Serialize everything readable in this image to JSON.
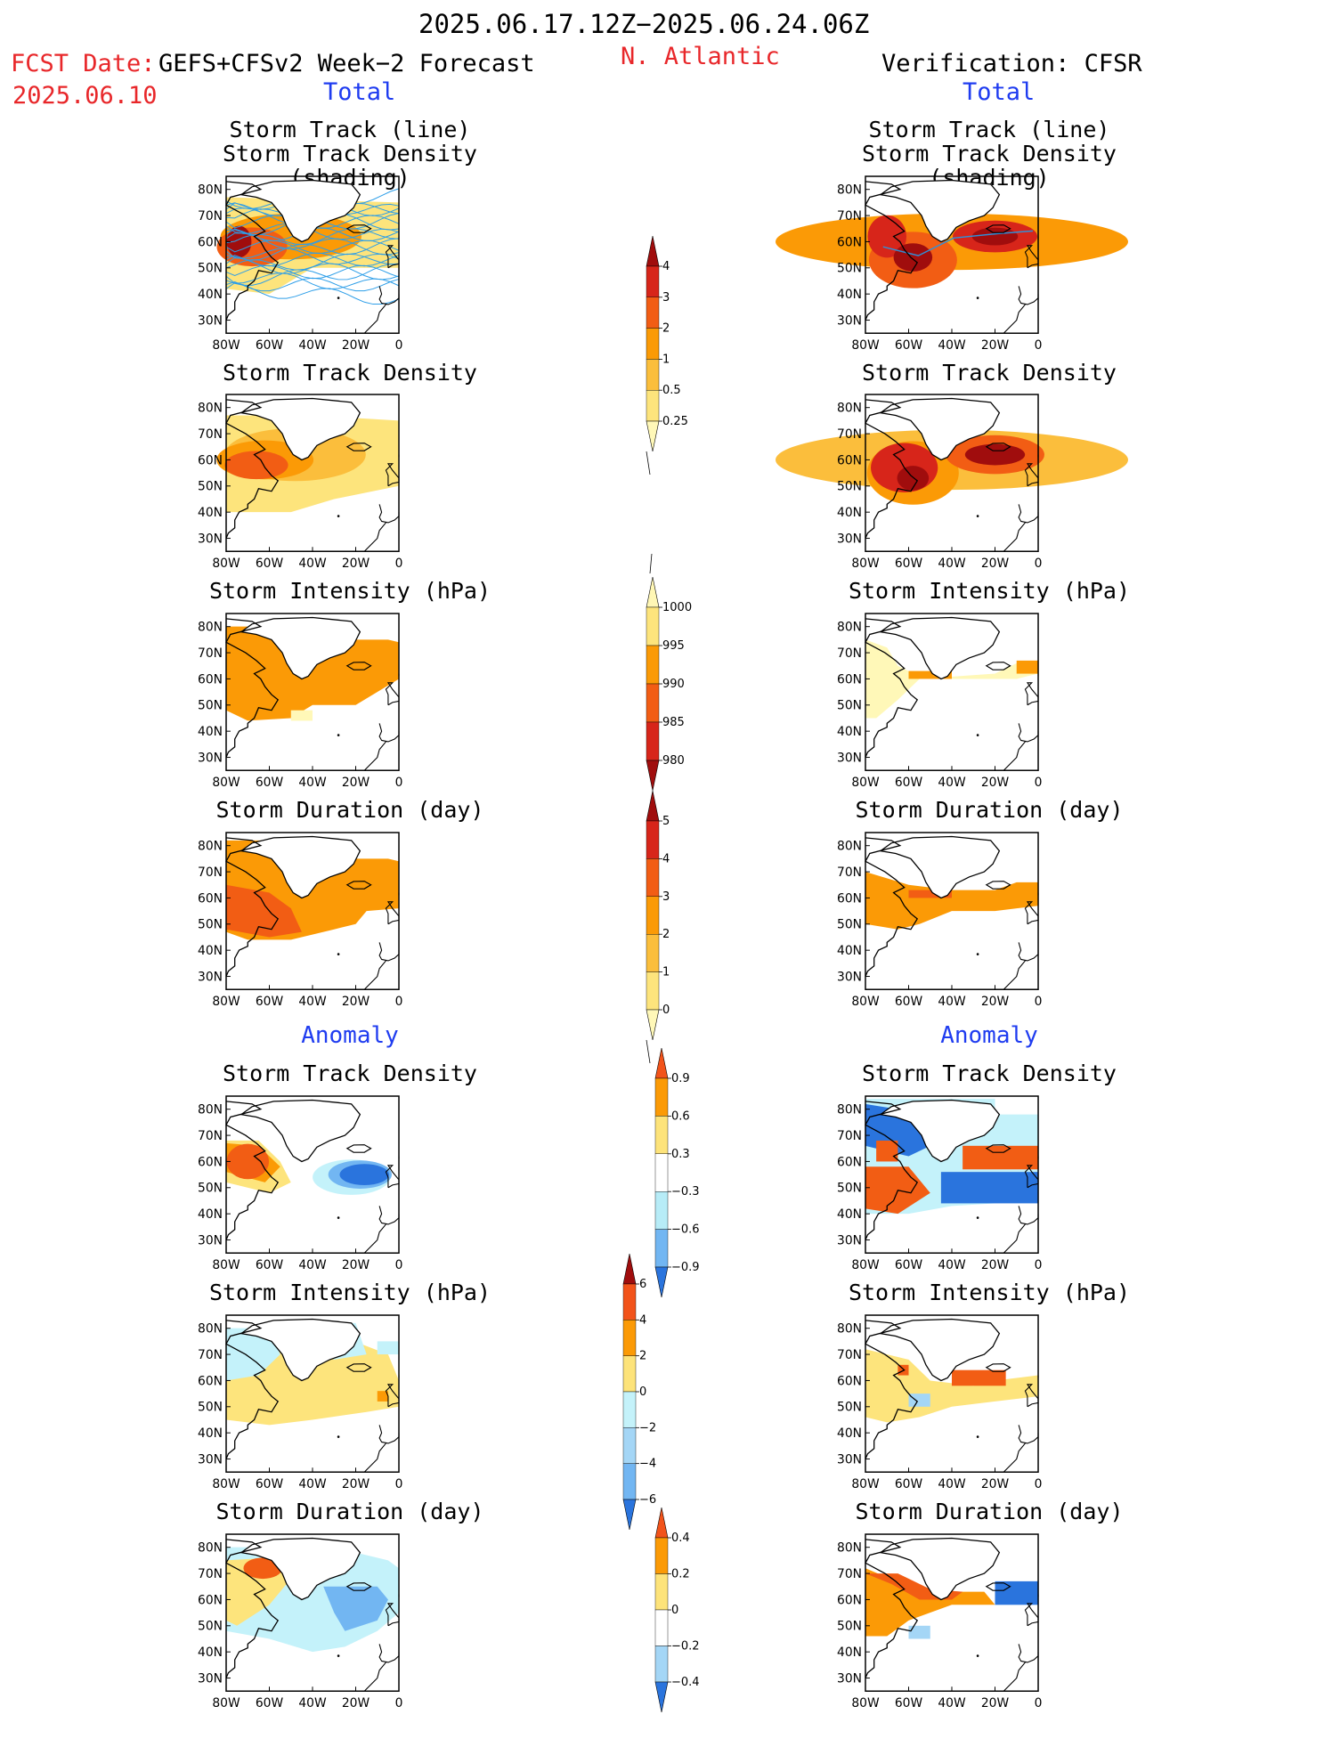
{
  "header": {
    "period": "2025.06.17.12Z−2025.06.24.06Z",
    "fcst_label": "FCST Date:",
    "fcst_model": "GEFS+CFSv2 Week−2 Forecast",
    "fcst_date": "2025.06.10",
    "region": "N. Atlantic",
    "verification": "Verification: CFSR",
    "left_total": "Total",
    "right_total": "Total",
    "left_anomaly": "Anomaly",
    "right_anomaly": "Anomaly"
  },
  "axes": {
    "lat_ticks": [
      "80N",
      "70N",
      "60N",
      "50N",
      "40N",
      "30N"
    ],
    "lon_ticks": [
      "80W",
      "60W",
      "40W",
      "20W",
      "0"
    ]
  },
  "panels": {
    "left": [
      {
        "title1": "Storm Track (line)",
        "title2": "Storm Track Density (shading)"
      },
      {
        "title1": "Storm Track Density",
        "title2": ""
      },
      {
        "title1": "Storm Intensity (hPa)",
        "title2": ""
      },
      {
        "title1": "Storm Duration (day)",
        "title2": ""
      },
      {
        "title1": "Storm Track Density",
        "title2": ""
      },
      {
        "title1": "Storm Intensity (hPa)",
        "title2": ""
      },
      {
        "title1": "Storm Duration (day)",
        "title2": ""
      }
    ],
    "right": [
      {
        "title1": "Storm Track (line)",
        "title2": "Storm Track Density (shading)"
      },
      {
        "title1": "Storm Track Density",
        "title2": ""
      },
      {
        "title1": "Storm Intensity (hPa)",
        "title2": ""
      },
      {
        "title1": "Storm Duration (day)",
        "title2": ""
      },
      {
        "title1": "Storm Track Density",
        "title2": ""
      },
      {
        "title1": "Storm Intensity (hPa)",
        "title2": ""
      },
      {
        "title1": "Storm Duration (day)",
        "title2": ""
      }
    ]
  },
  "colorbars": [
    {
      "name": "track-density",
      "labels": [
        "4",
        "3",
        "2",
        "1",
        "0.5",
        "0.25"
      ],
      "colors": [
        "#a00d0d",
        "#d7251a",
        "#f25d14",
        "#fb9a06",
        "#fbbe3c",
        "#fde47c",
        "#fff8b8"
      ]
    },
    {
      "name": "intensity",
      "labels": [
        "1000",
        "995",
        "990",
        "985",
        "980"
      ],
      "colors": [
        "#fff7b5",
        "#fde47c",
        "#fb9a06",
        "#f25d14",
        "#d7251a",
        "#a00d0d"
      ]
    },
    {
      "name": "duration",
      "labels": [
        "5",
        "4",
        "3",
        "2",
        "1",
        "0"
      ],
      "colors": [
        "#a00d0d",
        "#d7251a",
        "#f25d14",
        "#fb9a06",
        "#fbbe3c",
        "#fde47c",
        "#fff8b8"
      ]
    },
    {
      "name": "density-anomaly",
      "labels": [
        "0.9",
        "0.6",
        "0.3",
        "−0.3",
        "−0.6",
        "−0.9"
      ],
      "colors": [
        "#f2531a",
        "#fb9a06",
        "#fde37a",
        "#ffffff",
        "#b7ecf7",
        "#72b6f2",
        "#2a74dd"
      ]
    },
    {
      "name": "intensity-anomaly",
      "labels": [
        "6",
        "4",
        "2",
        "0",
        "−2",
        "−4",
        "−6"
      ],
      "colors": [
        "#a00d0d",
        "#f2531a",
        "#fb9a06",
        "#fde37a",
        "#c4f2fa",
        "#a4d6f6",
        "#72b6f2",
        "#2a74dd"
      ]
    },
    {
      "name": "duration-anomaly",
      "labels": [
        "0.4",
        "0.2",
        "0",
        "−0.2",
        "−0.4"
      ],
      "colors": [
        "#f2531a",
        "#fb9a06",
        "#fde37a",
        "#ffffff",
        "#a4d6f6",
        "#2a74dd"
      ]
    }
  ],
  "chart_data": [
    {
      "type": "heatmap",
      "panel": "Forecast Total: Storm Track (line) / Storm Track Density (shading)",
      "x_range_lon": [
        -80,
        0
      ],
      "y_range_lat": [
        25,
        85
      ],
      "note_values": "density 0.25–4 with maximum near 60N 70W; track lines spread 40N–75N"
    },
    {
      "type": "heatmap",
      "panel": "Forecast Total: Storm Track Density",
      "levels": [
        0.25,
        0.5,
        1,
        2,
        3,
        4
      ],
      "max_region": "55–62N, 65–55W"
    },
    {
      "type": "heatmap",
      "panel": "Forecast Total: Storm Intensity (hPa)",
      "levels": [
        1000,
        995,
        990,
        985,
        980
      ],
      "dominant_value_hPa": 992
    },
    {
      "type": "heatmap",
      "panel": "Forecast Total: Storm Duration (day)",
      "levels": [
        0,
        1,
        2,
        3,
        4,
        5
      ],
      "dominant_value_day": 2.5
    },
    {
      "type": "heatmap",
      "panel": "Forecast Anomaly: Storm Track Density",
      "levels": [
        -0.9,
        -0.6,
        -0.3,
        0.3,
        0.6,
        0.9
      ],
      "positive_region": "55–65N, 80–60W",
      "negative_region": "50–60N, 35–5W"
    },
    {
      "type": "heatmap",
      "panel": "Forecast Anomaly: Storm Intensity (hPa)",
      "levels": [
        -6,
        -4,
        -2,
        0,
        2,
        4,
        6
      ],
      "dominant_value_hPa": 1
    },
    {
      "type": "heatmap",
      "panel": "Forecast Anomaly: Storm Duration (day)",
      "levels": [
        -0.4,
        -0.2,
        0,
        0.2,
        0.4
      ]
    },
    {
      "type": "heatmap",
      "panel": "Verification Total: Storm Track Density (shading)",
      "levels": [
        0.25,
        0.5,
        1,
        2,
        3,
        4
      ],
      "max_region": "60–65N, 30–10W"
    },
    {
      "type": "heatmap",
      "panel": "Verification Total: Storm Track Density",
      "levels": [
        0.25,
        0.5,
        1,
        2,
        3,
        4
      ]
    },
    {
      "type": "heatmap",
      "panel": "Verification Total: Storm Intensity (hPa)",
      "levels": [
        1000,
        995,
        990,
        985,
        980
      ]
    },
    {
      "type": "heatmap",
      "panel": "Verification Total: Storm Duration (day)",
      "levels": [
        0,
        1,
        2,
        3,
        4,
        5
      ]
    },
    {
      "type": "heatmap",
      "panel": "Verification Anomaly: Storm Track Density",
      "levels": [
        -0.9,
        -0.6,
        -0.3,
        0.3,
        0.6,
        0.9
      ]
    },
    {
      "type": "heatmap",
      "panel": "Verification Anomaly: Storm Intensity (hPa)",
      "levels": [
        -6,
        -4,
        -2,
        0,
        2,
        4,
        6
      ]
    },
    {
      "type": "heatmap",
      "panel": "Verification Anomaly: Storm Duration (day)",
      "levels": [
        -0.4,
        -0.2,
        0,
        0.2,
        0.4
      ]
    }
  ]
}
